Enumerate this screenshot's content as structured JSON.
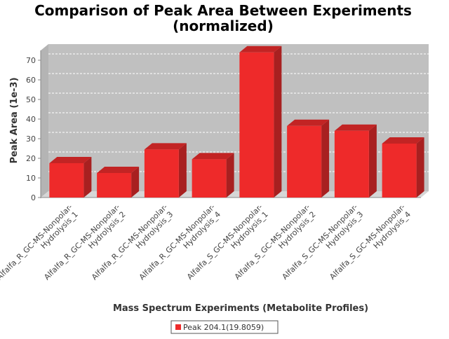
{
  "chart_data": {
    "type": "bar",
    "title": "Comparison of Peak Area Between Experiments",
    "subtitle": "(normalized)",
    "xlabel": "Mass Spectrum Experiments (Metabolite Profiles)",
    "ylabel": "Peak Area (1e-3)",
    "ylim": [
      0,
      75
    ],
    "yticks": [
      0,
      10,
      20,
      30,
      40,
      50,
      60,
      70
    ],
    "grid": true,
    "legend_position": "bottom",
    "categories": [
      [
        "Alfalfa_R_GC-MS-Nonpolar-",
        "Hydrolysis_1"
      ],
      [
        "Alfalfa_R_GC-MS-Nonpolar-",
        "Hydrolysis_2"
      ],
      [
        "Alfalfa_R_GC-MS-Nonpolar-",
        "Hydrolysis_3"
      ],
      [
        "Alfalfa_R_GC-MS-Nonpolar-",
        "Hydrolysis_4"
      ],
      [
        "Alfalfa_S_GC-MS-Nonpolar-",
        "Hydrolysis_1"
      ],
      [
        "Alfalfa_S_GC-MS-Nonpolar-",
        "Hydrolysis_2"
      ],
      [
        "Alfalfa_S_GC-MS-Nonpolar-",
        "Hydrolysis_3"
      ],
      [
        "Alfalfa_S_GC-MS-Nonpolar-",
        "Hydrolysis_4"
      ]
    ],
    "series": [
      {
        "name": "Peak 204.1(19.8059)",
        "color": "#ee2a2a",
        "values": [
          17.5,
          12.5,
          24.5,
          19.5,
          74,
          36.5,
          34,
          27.5
        ]
      }
    ]
  }
}
